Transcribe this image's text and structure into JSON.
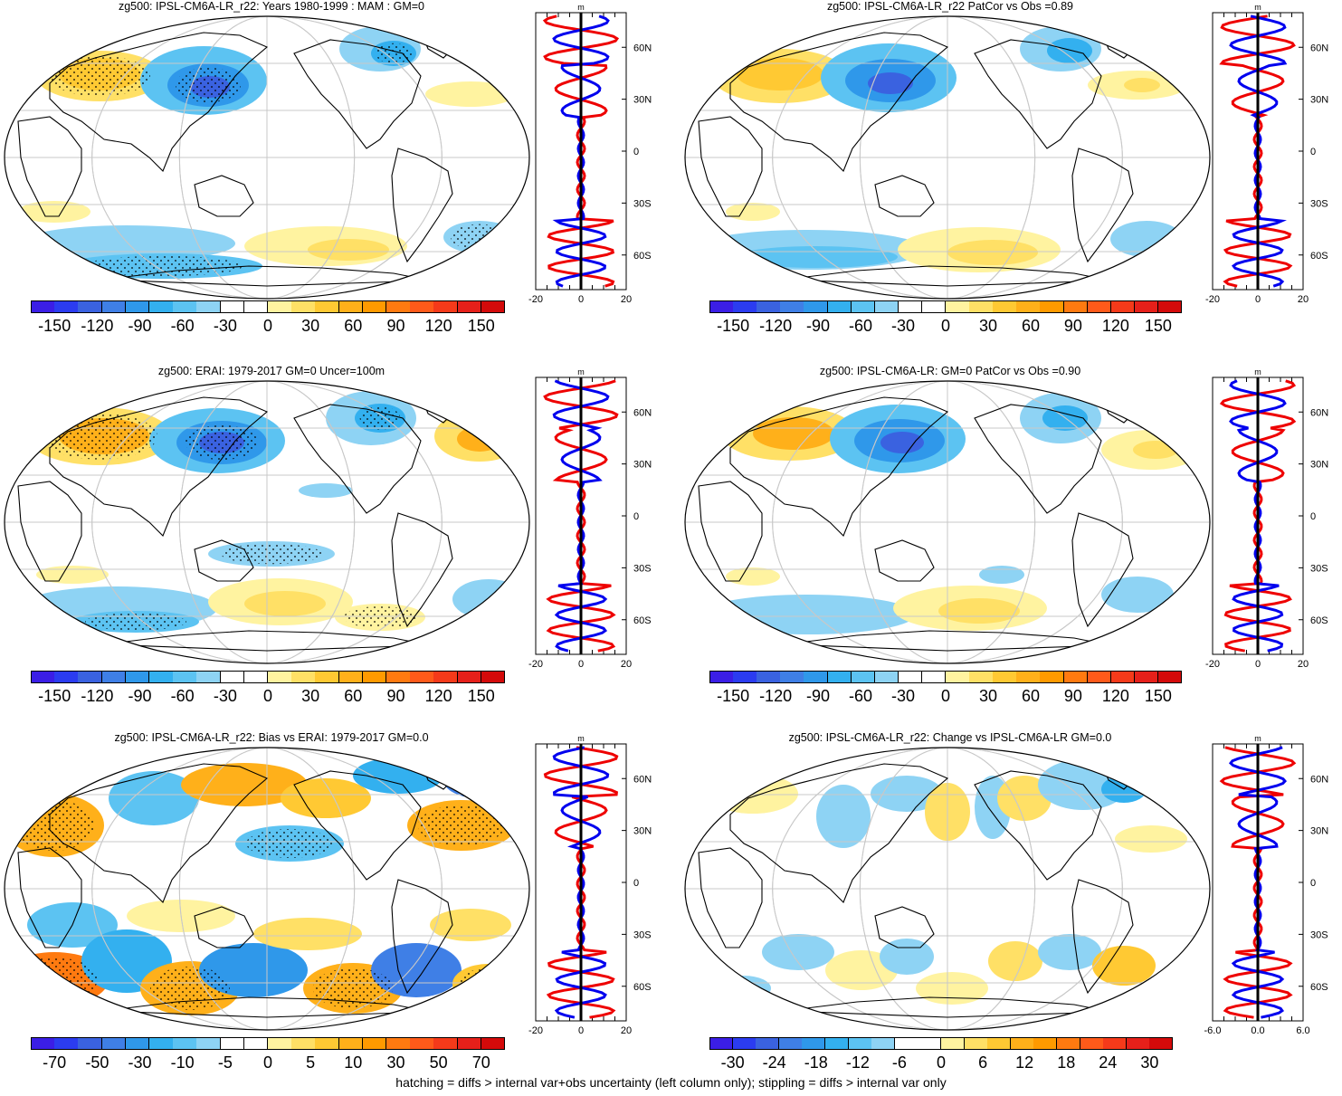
{
  "panels": [
    {
      "title": "zg500: IPSL-CM6A-LR_r22: Years 1980-1999 : MAM : GM=0",
      "scale": "main",
      "profile_ticks": [
        "-20",
        "0",
        "20"
      ],
      "stipple": true
    },
    {
      "title": "zg500: IPSL-CM6A-LR_r22 PatCor vs Obs =0.89",
      "scale": "main",
      "profile_ticks": [
        "-20",
        "0",
        "20"
      ],
      "stipple": false
    },
    {
      "title": "zg500: ERAI: 1979-2017 GM=0 Uncer=100m",
      "scale": "main",
      "profile_ticks": [
        "-20",
        "0",
        "20"
      ],
      "stipple": true
    },
    {
      "title": "zg500: IPSL-CM6A-LR: GM=0 PatCor vs Obs =0.90",
      "scale": "main",
      "profile_ticks": [
        "-20",
        "0",
        "20"
      ],
      "stipple": false
    },
    {
      "title": "zg500: IPSL-CM6A-LR_r22: Bias vs ERAI: 1979-2017 GM=0.0",
      "scale": "bias",
      "profile_ticks": [
        "-20",
        "0",
        "20"
      ],
      "stipple": true
    },
    {
      "title": "zg500: IPSL-CM6A-LR_r22: Change vs IPSL-CM6A-LR GM=0.0",
      "scale": "change",
      "profile_ticks": [
        "-6.0",
        "0.0",
        "6.0"
      ],
      "stipple": false
    }
  ],
  "profile_unit": "m",
  "lat_labels": [
    "60N",
    "30N",
    "0",
    "30S",
    "60S"
  ],
  "colorbars": {
    "main": {
      "labels": [
        "-150",
        "-120",
        "-90",
        "-60",
        "-30",
        "0",
        "30",
        "60",
        "90",
        "120",
        "150"
      ]
    },
    "bias": {
      "labels": [
        "-70",
        "-50",
        "-30",
        "-10",
        "-5",
        "0",
        "5",
        "10",
        "30",
        "50",
        "70"
      ]
    },
    "change": {
      "labels": [
        "-30",
        "-24",
        "-18",
        "-12",
        "-6",
        "0",
        "6",
        "12",
        "18",
        "24",
        "30"
      ]
    }
  },
  "palette": [
    "#3b1ee6",
    "#2b3cf0",
    "#3a62e0",
    "#3f7fe6",
    "#2f98ea",
    "#33b0ef",
    "#5cc3f2",
    "#8ed3f4",
    "#ffffff",
    "#ffffff",
    "#fff3a0",
    "#ffe066",
    "#ffc933",
    "#ffb01a",
    "#ff9a00",
    "#ff7a10",
    "#ff5a1a",
    "#f53a1a",
    "#e6201a",
    "#d40a0a"
  ],
  "colors": {
    "profile_red": "#ee0000",
    "profile_blue": "#0000ee",
    "grid": "#c8c8c8"
  },
  "footer": "hatching = diffs > internal var+obs uncertainty (left column only); stippling = diffs > internal var only"
}
